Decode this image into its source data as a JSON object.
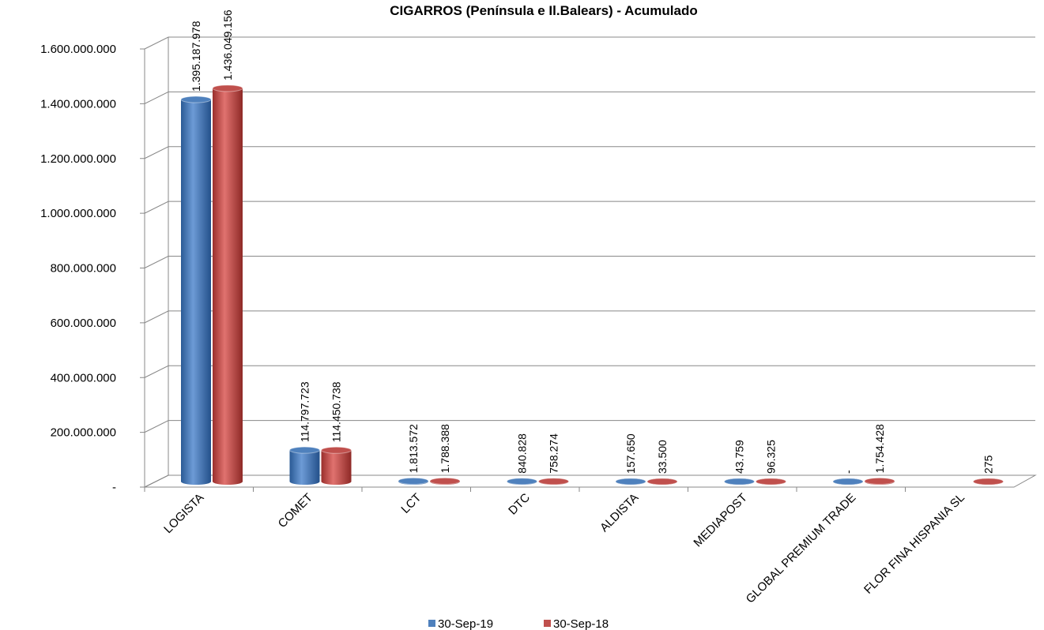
{
  "chart_data": {
    "type": "bar",
    "title": "CIGARROS  (Península e Il.Balears) - Acumulado",
    "categories": [
      "LOGISTA",
      "COMET",
      "LCT",
      "DTC",
      "ALDISTA",
      "MEDIAPOST",
      "GLOBAL PREMIUM TRADE",
      "FLOR FINA HISPANIA SL"
    ],
    "series": [
      {
        "name": "30-Sep-19",
        "color": "#4f81bd",
        "values": [
          1395187978,
          114797723,
          1813572,
          840828,
          157650,
          43759,
          0,
          null
        ],
        "value_labels": [
          "1.395.187.978",
          "114.797.723",
          "1.813.572",
          "840.828",
          "157.650",
          "43.759",
          "-",
          null
        ]
      },
      {
        "name": "30-Sep-18",
        "color": "#c0504d",
        "values": [
          1436049156,
          114450738,
          1788388,
          758274,
          33500,
          96325,
          1754428,
          275
        ],
        "value_labels": [
          "1.436.049.156",
          "114.450.738",
          "1.788.388",
          "758.274",
          "33.500",
          "96.325",
          "1.754.428",
          "275"
        ]
      }
    ],
    "ylim": [
      0,
      1600000000
    ],
    "yticks": [
      {
        "value": 0,
        "label": "-"
      },
      {
        "value": 200000000,
        "label": "200.000.000"
      },
      {
        "value": 400000000,
        "label": "400.000.000"
      },
      {
        "value": 600000000,
        "label": "600.000.000"
      },
      {
        "value": 800000000,
        "label": "800.000.000"
      },
      {
        "value": 1000000000,
        "label": "1.000.000.000"
      },
      {
        "value": 1200000000,
        "label": "1.200.000.000"
      },
      {
        "value": 1400000000,
        "label": "1.400.000.000"
      },
      {
        "value": 1600000000,
        "label": "1.600.000.000"
      }
    ],
    "grid": true,
    "legend": "bottom"
  }
}
